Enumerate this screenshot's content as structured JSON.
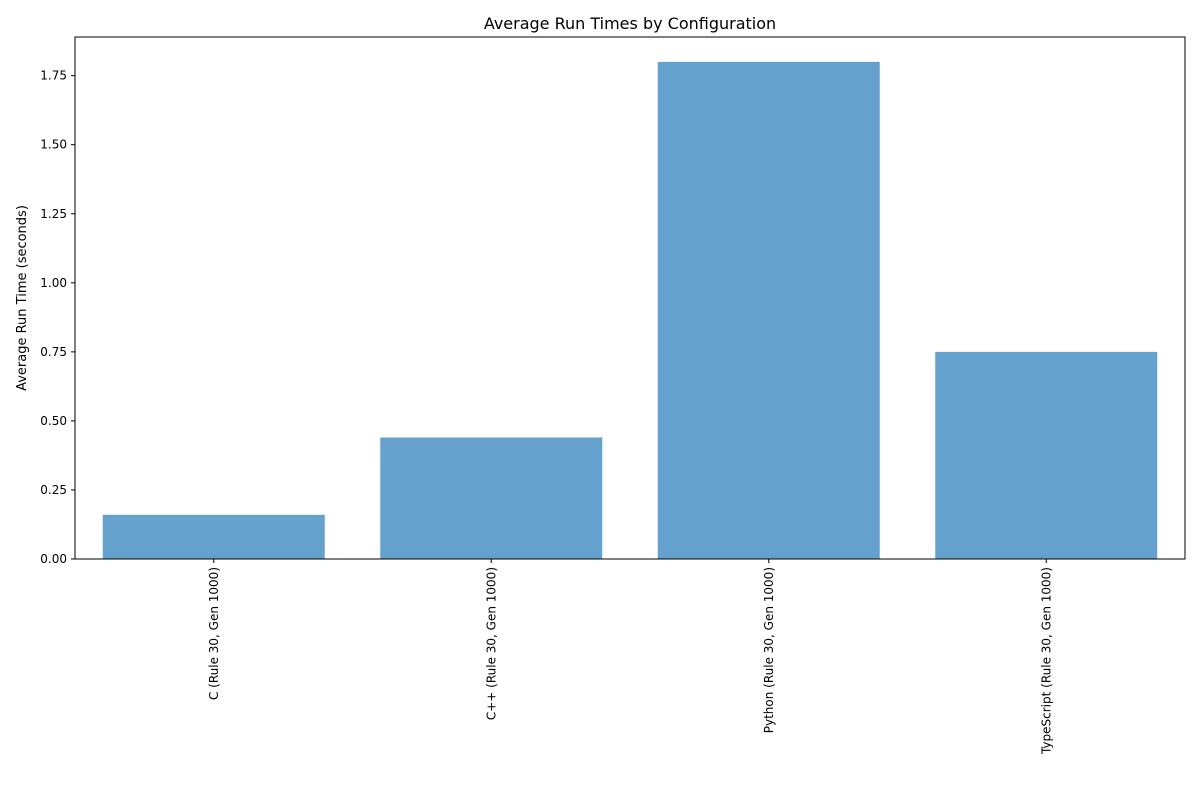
{
  "chart_data": {
    "type": "bar",
    "title": "Average Run Times by Configuration",
    "xlabel": "",
    "ylabel": "Average Run Time (seconds)",
    "categories": [
      "C (Rule 30, Gen 1000)",
      "C++ (Rule 30, Gen 1000)",
      "Python (Rule 30, Gen 1000)",
      "TypeScript (Rule 30, Gen 1000)"
    ],
    "values": [
      0.16,
      0.44,
      1.8,
      0.75
    ],
    "ylim": [
      0,
      1.89
    ],
    "yticks": [
      0.0,
      0.25,
      0.5,
      0.75,
      1.0,
      1.25,
      1.5,
      1.75
    ],
    "ytick_labels": [
      "0.00",
      "0.25",
      "0.50",
      "0.75",
      "1.00",
      "1.25",
      "1.50",
      "1.75"
    ],
    "bar_color": "#4a90c4",
    "bar_opacity": 0.85,
    "grid": false,
    "legend": "none"
  }
}
